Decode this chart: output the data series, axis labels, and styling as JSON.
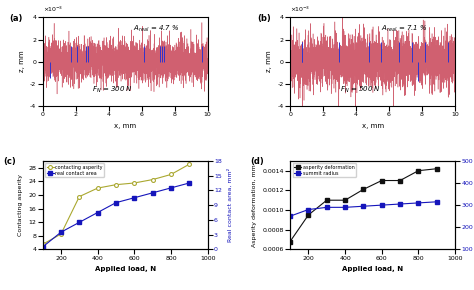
{
  "panel_a": {
    "label": "(a)",
    "annotation": "A$_{real}$ = 4.7 %",
    "fn_text": "F$_N$ = 300 N",
    "xlim": [
      0,
      10
    ],
    "ylim": [
      -0.004,
      0.004
    ],
    "xlabel": "x, mm",
    "ylabel": "z, mm",
    "noise_seed": 42,
    "noise_scale": 0.0009,
    "spike_scale": 0.0018
  },
  "panel_b": {
    "label": "(b)",
    "annotation": "A$_{real}$ = 7.1 %",
    "fn_text": "F$_N$ = 500 N",
    "xlim": [
      0,
      10
    ],
    "ylim": [
      -0.004,
      0.004
    ],
    "xlabel": "x, mm",
    "ylabel": "z, mm",
    "noise_seed": 99,
    "noise_scale": 0.0011,
    "spike_scale": 0.0022
  },
  "panel_c": {
    "label": "(c)",
    "xlabel": "Applied load, N",
    "ylabel_left": "Contacting asperity",
    "ylabel_right": "Real contact area, mm²",
    "xlim": [
      100,
      1000
    ],
    "ylim_left": [
      4,
      30
    ],
    "ylim_right": [
      0,
      14
    ],
    "xticks": [
      200,
      400,
      600,
      800,
      1000
    ],
    "asperity_x": [
      100,
      200,
      300,
      400,
      500,
      600,
      700,
      800,
      900
    ],
    "asperity_y": [
      5.5,
      8.5,
      19.5,
      22,
      23,
      23.5,
      24.5,
      26,
      29
    ],
    "contact_x": [
      100,
      200,
      300,
      400,
      500,
      600,
      700,
      800,
      900
    ],
    "contact_y": [
      0.5,
      3.5,
      5.5,
      7.5,
      9.5,
      10.5,
      11.5,
      12.5,
      13.5
    ],
    "asperity_color": "#aaa830",
    "contact_color": "#1515bb",
    "legend_asperity": "contacting asperity",
    "legend_contact": "real contact area",
    "yticks_left": [
      4,
      8,
      12,
      16,
      20,
      24,
      28
    ],
    "yticks_right": [
      0,
      3,
      6,
      9,
      12,
      15,
      18
    ]
  },
  "panel_d": {
    "label": "(d)",
    "xlabel": "Applied load, N",
    "ylabel_left": "Asperity deformation, mm",
    "ylabel_right": "Summit radius, μm",
    "xlim": [
      100,
      1000
    ],
    "ylim_left": [
      0.0006,
      0.0015
    ],
    "ylim_right": [
      100,
      500
    ],
    "xticks": [
      200,
      400,
      600,
      800,
      1000
    ],
    "deform_x": [
      100,
      200,
      300,
      400,
      500,
      600,
      700,
      800,
      900
    ],
    "deform_y": [
      0.00068,
      0.00095,
      0.0011,
      0.0011,
      0.00121,
      0.0013,
      0.0013,
      0.0014,
      0.00142
    ],
    "radius_x": [
      100,
      200,
      300,
      400,
      500,
      600,
      700,
      800,
      900
    ],
    "radius_y": [
      250,
      280,
      290,
      290,
      295,
      300,
      305,
      310,
      315
    ],
    "deform_color": "#111111",
    "radius_color": "#1515bb",
    "legend_deform": "asperity deformation",
    "legend_radius": "summit radius",
    "yticks_left": [
      0.0006,
      0.0008,
      0.001,
      0.0012,
      0.0014
    ],
    "yticks_right": [
      100,
      200,
      300,
      400,
      500
    ]
  },
  "bg_color": "#ffffff"
}
